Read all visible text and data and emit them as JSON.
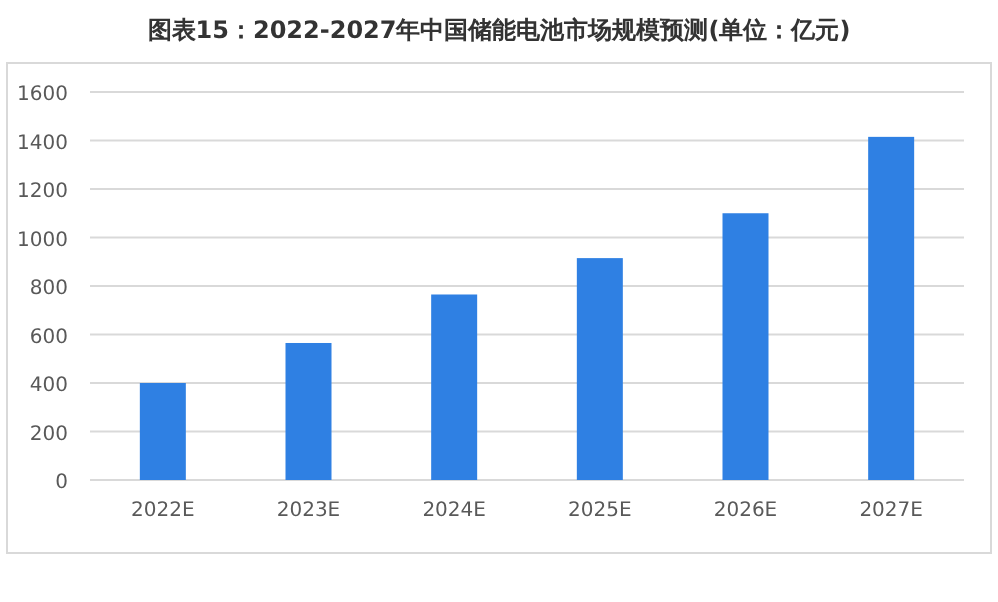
{
  "chart_data": {
    "type": "bar",
    "title": "图表15：2022-2027年中国储能电池市场规模预测(单位：亿元)",
    "categories": [
      "2022E",
      "2023E",
      "2024E",
      "2025E",
      "2026E",
      "2027E"
    ],
    "values": [
      400,
      565,
      765,
      915,
      1100,
      1415
    ],
    "color": "#2f80e3",
    "ylim": [
      0,
      1600
    ],
    "yticks": [
      0,
      200,
      400,
      600,
      800,
      1000,
      1200,
      1400,
      1600
    ],
    "grid": "y"
  }
}
